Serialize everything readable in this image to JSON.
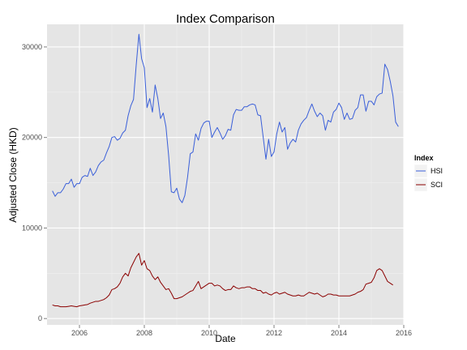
{
  "chart_data": {
    "type": "line",
    "title": "Index Comparison",
    "xlabel": "Date",
    "ylabel": "Adjusted Close (HKD)",
    "x_ticks": [
      "2006",
      "2008",
      "2010",
      "2012",
      "2014",
      "2016"
    ],
    "y_ticks": [
      "0",
      "10000",
      "20000",
      "30000"
    ],
    "xlim": [
      "2005-01-01",
      "2016-01-01"
    ],
    "ylim": [
      0,
      30000
    ],
    "grid": true,
    "legend": {
      "title": "Index",
      "position": "right"
    },
    "series": [
      {
        "name": "HSI",
        "color": "#3a5fd9",
        "points": [
          [
            "2005-03-01",
            14100
          ],
          [
            "2005-04-01",
            13500
          ],
          [
            "2005-05-01",
            13900
          ],
          [
            "2005-06-01",
            13900
          ],
          [
            "2005-07-01",
            14300
          ],
          [
            "2005-08-01",
            14900
          ],
          [
            "2005-09-01",
            14900
          ],
          [
            "2005-10-01",
            15400
          ],
          [
            "2005-11-01",
            14500
          ],
          [
            "2005-12-01",
            14900
          ],
          [
            "2006-01-01",
            14900
          ],
          [
            "2006-02-01",
            15600
          ],
          [
            "2006-03-01",
            15800
          ],
          [
            "2006-04-01",
            15700
          ],
          [
            "2006-05-01",
            16600
          ],
          [
            "2006-06-01",
            15800
          ],
          [
            "2006-07-01",
            16200
          ],
          [
            "2006-08-01",
            16900
          ],
          [
            "2006-09-01",
            17300
          ],
          [
            "2006-10-01",
            17500
          ],
          [
            "2006-11-01",
            18300
          ],
          [
            "2006-12-01",
            19000
          ],
          [
            "2007-01-01",
            20000
          ],
          [
            "2007-02-01",
            20100
          ],
          [
            "2007-03-01",
            19700
          ],
          [
            "2007-04-01",
            19900
          ],
          [
            "2007-05-01",
            20500
          ],
          [
            "2007-06-01",
            20800
          ],
          [
            "2007-07-01",
            22400
          ],
          [
            "2007-08-01",
            23500
          ],
          [
            "2007-09-01",
            24200
          ],
          [
            "2007-10-01",
            28000
          ],
          [
            "2007-11-01",
            31400
          ],
          [
            "2007-12-01",
            28700
          ],
          [
            "2008-01-01",
            27700
          ],
          [
            "2008-02-01",
            23300
          ],
          [
            "2008-03-01",
            24300
          ],
          [
            "2008-04-01",
            22800
          ],
          [
            "2008-05-01",
            25800
          ],
          [
            "2008-06-01",
            24300
          ],
          [
            "2008-07-01",
            22100
          ],
          [
            "2008-08-01",
            22700
          ],
          [
            "2008-09-01",
            21200
          ],
          [
            "2008-10-01",
            18000
          ],
          [
            "2008-11-01",
            14000
          ],
          [
            "2008-12-01",
            13900
          ],
          [
            "2009-01-01",
            14400
          ],
          [
            "2009-02-01",
            13200
          ],
          [
            "2009-03-01",
            12800
          ],
          [
            "2009-04-01",
            13600
          ],
          [
            "2009-05-01",
            15600
          ],
          [
            "2009-06-01",
            18200
          ],
          [
            "2009-07-01",
            18400
          ],
          [
            "2009-08-01",
            20400
          ],
          [
            "2009-09-01",
            19700
          ],
          [
            "2009-10-01",
            21000
          ],
          [
            "2009-11-01",
            21600
          ],
          [
            "2009-12-01",
            21800
          ],
          [
            "2010-01-01",
            21800
          ],
          [
            "2010-02-01",
            20000
          ],
          [
            "2010-03-01",
            20600
          ],
          [
            "2010-04-01",
            21100
          ],
          [
            "2010-05-01",
            20500
          ],
          [
            "2010-06-01",
            19800
          ],
          [
            "2010-07-01",
            20200
          ],
          [
            "2010-08-01",
            20900
          ],
          [
            "2010-09-01",
            20800
          ],
          [
            "2010-10-01",
            22500
          ],
          [
            "2010-11-01",
            23100
          ],
          [
            "2010-12-01",
            23000
          ],
          [
            "2011-01-01",
            23000
          ],
          [
            "2011-02-01",
            23400
          ],
          [
            "2011-03-01",
            23400
          ],
          [
            "2011-04-01",
            23600
          ],
          [
            "2011-05-01",
            23700
          ],
          [
            "2011-06-01",
            23600
          ],
          [
            "2011-07-01",
            22500
          ],
          [
            "2011-08-01",
            22400
          ],
          [
            "2011-09-01",
            20000
          ],
          [
            "2011-10-01",
            17600
          ],
          [
            "2011-11-01",
            19800
          ],
          [
            "2011-12-01",
            17900
          ],
          [
            "2012-01-01",
            18400
          ],
          [
            "2012-02-01",
            20400
          ],
          [
            "2012-03-01",
            21700
          ],
          [
            "2012-04-01",
            20600
          ],
          [
            "2012-05-01",
            21100
          ],
          [
            "2012-06-01",
            18700
          ],
          [
            "2012-07-01",
            19400
          ],
          [
            "2012-08-01",
            19800
          ],
          [
            "2012-09-01",
            19500
          ],
          [
            "2012-10-01",
            20800
          ],
          [
            "2012-11-01",
            21500
          ],
          [
            "2012-12-01",
            21900
          ],
          [
            "2013-01-01",
            22200
          ],
          [
            "2013-02-01",
            23000
          ],
          [
            "2013-03-01",
            23700
          ],
          [
            "2013-04-01",
            22900
          ],
          [
            "2013-05-01",
            22300
          ],
          [
            "2013-06-01",
            22700
          ],
          [
            "2013-07-01",
            22400
          ],
          [
            "2013-08-01",
            20800
          ],
          [
            "2013-09-01",
            21900
          ],
          [
            "2013-10-01",
            21700
          ],
          [
            "2013-11-01",
            22800
          ],
          [
            "2013-12-01",
            23100
          ],
          [
            "2014-01-01",
            23800
          ],
          [
            "2014-02-01",
            23300
          ],
          [
            "2014-03-01",
            22000
          ],
          [
            "2014-04-01",
            22700
          ],
          [
            "2014-05-01",
            22000
          ],
          [
            "2014-06-01",
            22100
          ],
          [
            "2014-07-01",
            23000
          ],
          [
            "2014-08-01",
            23300
          ],
          [
            "2014-09-01",
            24700
          ],
          [
            "2014-10-01",
            24700
          ],
          [
            "2014-11-01",
            22900
          ],
          [
            "2014-12-01",
            24000
          ],
          [
            "2015-01-01",
            24000
          ],
          [
            "2015-02-01",
            23600
          ],
          [
            "2015-03-01",
            24500
          ],
          [
            "2015-04-01",
            24800
          ],
          [
            "2015-05-01",
            24900
          ],
          [
            "2015-06-01",
            28100
          ],
          [
            "2015-07-01",
            27500
          ],
          [
            "2015-08-01",
            26200
          ],
          [
            "2015-09-01",
            24600
          ],
          [
            "2015-10-01",
            21700
          ],
          [
            "2015-11-01",
            21200
          ]
        ]
      },
      {
        "name": "SCI",
        "color": "#8b0000",
        "points": [
          [
            "2005-03-01",
            1500
          ],
          [
            "2005-04-01",
            1400
          ],
          [
            "2005-05-01",
            1400
          ],
          [
            "2005-06-01",
            1300
          ],
          [
            "2005-07-01",
            1300
          ],
          [
            "2005-08-01",
            1300
          ],
          [
            "2005-09-01",
            1350
          ],
          [
            "2005-10-01",
            1400
          ],
          [
            "2005-11-01",
            1350
          ],
          [
            "2005-12-01",
            1300
          ],
          [
            "2006-01-01",
            1400
          ],
          [
            "2006-02-01",
            1450
          ],
          [
            "2006-03-01",
            1500
          ],
          [
            "2006-04-01",
            1550
          ],
          [
            "2006-05-01",
            1700
          ],
          [
            "2006-06-01",
            1800
          ],
          [
            "2006-07-01",
            1900
          ],
          [
            "2006-08-01",
            1900
          ],
          [
            "2006-09-01",
            2000
          ],
          [
            "2006-10-01",
            2100
          ],
          [
            "2006-11-01",
            2300
          ],
          [
            "2006-12-01",
            2600
          ],
          [
            "2007-01-01",
            3200
          ],
          [
            "2007-02-01",
            3300
          ],
          [
            "2007-03-01",
            3500
          ],
          [
            "2007-04-01",
            3900
          ],
          [
            "2007-05-01",
            4600
          ],
          [
            "2007-06-01",
            5000
          ],
          [
            "2007-07-01",
            4700
          ],
          [
            "2007-08-01",
            5600
          ],
          [
            "2007-09-01",
            6200
          ],
          [
            "2007-10-01",
            6800
          ],
          [
            "2007-11-01",
            7200
          ],
          [
            "2007-12-01",
            5900
          ],
          [
            "2008-01-01",
            6400
          ],
          [
            "2008-02-01",
            5500
          ],
          [
            "2008-03-01",
            5300
          ],
          [
            "2008-04-01",
            4700
          ],
          [
            "2008-05-01",
            4300
          ],
          [
            "2008-06-01",
            4600
          ],
          [
            "2008-07-01",
            4000
          ],
          [
            "2008-08-01",
            3600
          ],
          [
            "2008-09-01",
            3200
          ],
          [
            "2008-10-01",
            3300
          ],
          [
            "2008-11-01",
            2800
          ],
          [
            "2008-12-01",
            2200
          ],
          [
            "2009-01-01",
            2200
          ],
          [
            "2009-02-01",
            2300
          ],
          [
            "2009-03-01",
            2400
          ],
          [
            "2009-04-01",
            2600
          ],
          [
            "2009-05-01",
            2800
          ],
          [
            "2009-06-01",
            3000
          ],
          [
            "2009-07-01",
            3100
          ],
          [
            "2009-08-01",
            3600
          ],
          [
            "2009-09-01",
            4100
          ],
          [
            "2009-10-01",
            3300
          ],
          [
            "2009-11-01",
            3500
          ],
          [
            "2009-12-01",
            3700
          ],
          [
            "2010-01-01",
            3900
          ],
          [
            "2010-02-01",
            3900
          ],
          [
            "2010-03-01",
            3600
          ],
          [
            "2010-04-01",
            3700
          ],
          [
            "2010-05-01",
            3600
          ],
          [
            "2010-06-01",
            3300
          ],
          [
            "2010-07-01",
            3100
          ],
          [
            "2010-08-01",
            3200
          ],
          [
            "2010-09-01",
            3200
          ],
          [
            "2010-10-01",
            3600
          ],
          [
            "2010-11-01",
            3400
          ],
          [
            "2010-12-01",
            3300
          ],
          [
            "2011-01-01",
            3400
          ],
          [
            "2011-02-01",
            3400
          ],
          [
            "2011-03-01",
            3500
          ],
          [
            "2011-04-01",
            3500
          ],
          [
            "2011-05-01",
            3300
          ],
          [
            "2011-06-01",
            3300
          ],
          [
            "2011-07-01",
            3100
          ],
          [
            "2011-08-01",
            3100
          ],
          [
            "2011-09-01",
            2800
          ],
          [
            "2011-10-01",
            2900
          ],
          [
            "2011-11-01",
            2700
          ],
          [
            "2011-12-01",
            2600
          ],
          [
            "2012-01-01",
            2800
          ],
          [
            "2012-02-01",
            2900
          ],
          [
            "2012-03-01",
            2700
          ],
          [
            "2012-04-01",
            2800
          ],
          [
            "2012-05-01",
            2900
          ],
          [
            "2012-06-01",
            2700
          ],
          [
            "2012-07-01",
            2600
          ],
          [
            "2012-08-01",
            2500
          ],
          [
            "2012-09-01",
            2500
          ],
          [
            "2012-10-01",
            2600
          ],
          [
            "2012-11-01",
            2500
          ],
          [
            "2012-12-01",
            2500
          ],
          [
            "2013-01-01",
            2700
          ],
          [
            "2013-02-01",
            2900
          ],
          [
            "2013-03-01",
            2800
          ],
          [
            "2013-04-01",
            2700
          ],
          [
            "2013-05-01",
            2800
          ],
          [
            "2013-06-01",
            2600
          ],
          [
            "2013-07-01",
            2400
          ],
          [
            "2013-08-01",
            2500
          ],
          [
            "2013-09-01",
            2700
          ],
          [
            "2013-10-01",
            2700
          ],
          [
            "2013-11-01",
            2600
          ],
          [
            "2013-12-01",
            2600
          ],
          [
            "2014-01-01",
            2500
          ],
          [
            "2014-02-01",
            2500
          ],
          [
            "2014-03-01",
            2500
          ],
          [
            "2014-04-01",
            2500
          ],
          [
            "2014-05-01",
            2500
          ],
          [
            "2014-06-01",
            2600
          ],
          [
            "2014-07-01",
            2700
          ],
          [
            "2014-08-01",
            2900
          ],
          [
            "2014-09-01",
            3000
          ],
          [
            "2014-10-01",
            3200
          ],
          [
            "2014-11-01",
            3800
          ],
          [
            "2014-12-01",
            3900
          ],
          [
            "2015-01-01",
            4000
          ],
          [
            "2015-02-01",
            4500
          ],
          [
            "2015-03-01",
            5300
          ],
          [
            "2015-04-01",
            5500
          ],
          [
            "2015-05-01",
            5300
          ],
          [
            "2015-06-01",
            4700
          ],
          [
            "2015-07-01",
            4100
          ],
          [
            "2015-08-01",
            3900
          ],
          [
            "2015-09-01",
            3700
          ]
        ]
      }
    ]
  }
}
